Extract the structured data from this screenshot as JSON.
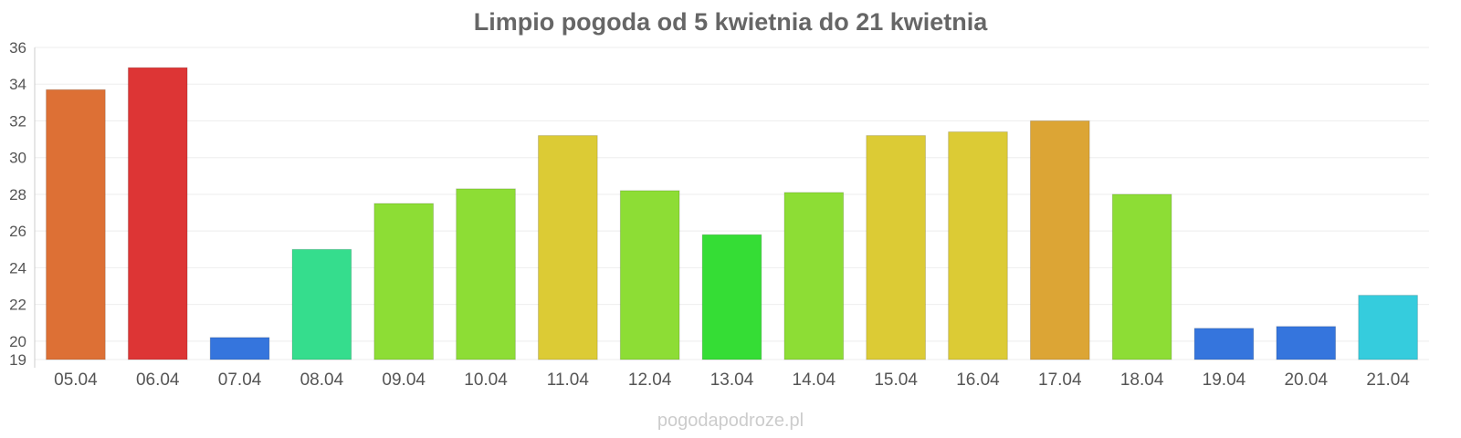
{
  "watermark": "pogodapodroze.pl",
  "chart_data": {
    "type": "bar",
    "title": "Limpio pogoda od 5 kwietnia do 21 kwietnia",
    "xlabel": "",
    "ylabel": "",
    "categories": [
      "05.04",
      "06.04",
      "07.04",
      "08.04",
      "09.04",
      "10.04",
      "11.04",
      "12.04",
      "13.04",
      "14.04",
      "15.04",
      "16.04",
      "17.04",
      "18.04",
      "19.04",
      "20.04",
      "21.04"
    ],
    "values": [
      33.7,
      34.9,
      20.2,
      25.0,
      27.5,
      28.3,
      31.2,
      28.2,
      25.8,
      28.1,
      31.2,
      31.4,
      32.0,
      28.0,
      20.7,
      20.8,
      22.5
    ],
    "colors": [
      "#dd7035",
      "#dd3535",
      "#3575dd",
      "#35dd8d",
      "#8ddd35",
      "#8ddd35",
      "#dccb35",
      "#8ddd35",
      "#35dd35",
      "#8ddd35",
      "#dccb35",
      "#dccb35",
      "#dca535",
      "#8ddd35",
      "#3575dd",
      "#3575dd",
      "#35ccdd"
    ],
    "ylim": [
      19,
      36
    ],
    "yticks": [
      19,
      20,
      22,
      24,
      26,
      28,
      30,
      32,
      34,
      36
    ],
    "grid": true,
    "legend": "none"
  }
}
